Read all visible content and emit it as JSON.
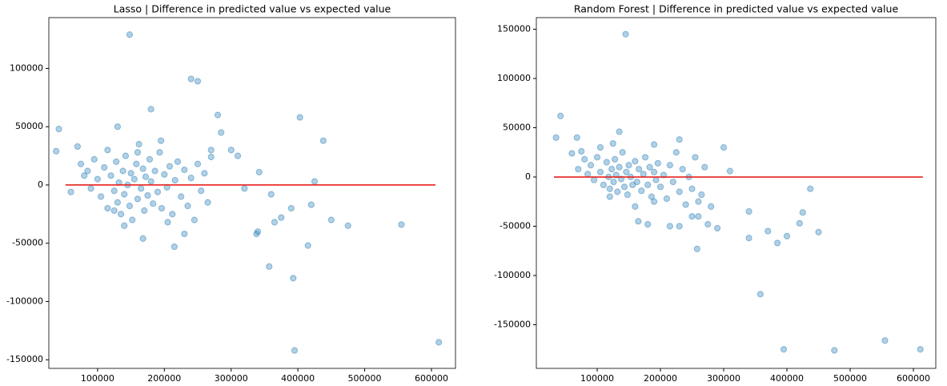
{
  "chart_data": [
    {
      "type": "scatter",
      "title": "Lasso | Difference in predicted value vs expected value",
      "xlim": [
        27000,
        636000
      ],
      "ylim": [
        -157400,
        143600
      ],
      "xticks": [
        100000,
        200000,
        300000,
        400000,
        500000,
        600000
      ],
      "yticks": [
        -150000,
        -100000,
        -50000,
        0,
        50000,
        100000
      ],
      "series": [
        {
          "color": "#1f77b4",
          "x": [
            148000,
            240000,
            250000,
            180000,
            280000,
            403000,
            438000,
            38000,
            42000,
            555000,
            611000,
            395000,
            393000,
            357000,
            415000,
            475000,
            450000,
            375000,
            365000,
            340000,
            338000,
            215000,
            168000,
            130000,
            285000,
            230000,
            425000,
            420000,
            390000,
            360000,
            342000,
            320000,
            300000,
            310000,
            270000,
            100000,
            105000,
            110000,
            115000,
            120000,
            125000,
            128000,
            130000,
            132000,
            135000,
            138000,
            140000,
            142000,
            145000,
            148000,
            150000,
            152000,
            155000,
            158000,
            160000,
            162000,
            165000,
            168000,
            170000,
            172000,
            175000,
            178000,
            180000,
            183000,
            186000,
            190000,
            193000,
            196000,
            200000,
            204000,
            208000,
            212000,
            216000,
            220000,
            225000,
            230000,
            235000,
            240000,
            245000,
            250000,
            255000,
            260000,
            265000,
            270000,
            85000,
            90000,
            95000,
            80000,
            75000,
            115000,
            125000,
            140000,
            160000,
            195000,
            205000,
            60000,
            70000
          ],
          "values": [
            129000,
            91000,
            89000,
            65000,
            60000,
            58000,
            38000,
            29000,
            48000,
            -34000,
            -135000,
            -142000,
            -80000,
            -70000,
            -52000,
            -35000,
            -30000,
            -28000,
            -32000,
            -40000,
            -42000,
            -53000,
            -46000,
            50000,
            45000,
            -42000,
            3000,
            -17000,
            -20000,
            -8000,
            11000,
            -3000,
            30000,
            25000,
            30000,
            5000,
            -10000,
            15000,
            -20000,
            8000,
            -5000,
            20000,
            -15000,
            2000,
            -25000,
            12000,
            -8000,
            25000,
            0,
            -18000,
            10000,
            -30000,
            5000,
            18000,
            -12000,
            35000,
            -3000,
            14000,
            -22000,
            7000,
            -9000,
            22000,
            3000,
            -16000,
            12000,
            -6000,
            28000,
            -20000,
            9000,
            -2000,
            16000,
            -25000,
            4000,
            20000,
            -10000,
            13000,
            -18000,
            6000,
            -30000,
            18000,
            -5000,
            10000,
            -15000,
            24000,
            12000,
            -3000,
            22000,
            8000,
            18000,
            30000,
            -22000,
            -35000,
            28000,
            38000,
            -32000,
            -6000,
            33000
          ]
        },
        {
          "type": "line",
          "color": "#e8221b",
          "x": [
            52000,
            606000
          ],
          "values": [
            0,
            0
          ]
        }
      ]
    },
    {
      "type": "scatter",
      "title": "Random Forest | Difference in predicted value vs expected value",
      "xlim": [
        3800,
        635400
      ],
      "ylim": [
        -194300,
        161800
      ],
      "xticks": [
        100000,
        200000,
        300000,
        400000,
        500000,
        600000
      ],
      "yticks": [
        -150000,
        -100000,
        -50000,
        0,
        50000,
        100000,
        150000
      ],
      "series": [
        {
          "color": "#1f77b4",
          "x": [
            145000,
            42000,
            35000,
            68000,
            135000,
            555000,
            611000,
            475000,
            395000,
            358000,
            258000,
            340000,
            385000,
            450000,
            400000,
            420000,
            425000,
            437000,
            370000,
            340000,
            300000,
            310000,
            290000,
            275000,
            250000,
            260000,
            230000,
            215000,
            180000,
            165000,
            90000,
            95000,
            100000,
            105000,
            110000,
            115000,
            118000,
            120000,
            123000,
            126000,
            128000,
            130000,
            132000,
            135000,
            138000,
            140000,
            143000,
            146000,
            148000,
            150000,
            153000,
            156000,
            160000,
            163000,
            166000,
            170000,
            173000,
            176000,
            180000,
            183000,
            186000,
            190000,
            193000,
            196000,
            200000,
            205000,
            210000,
            215000,
            220000,
            225000,
            230000,
            235000,
            240000,
            245000,
            250000,
            255000,
            260000,
            265000,
            270000,
            280000,
            75000,
            80000,
            60000,
            70000,
            85000,
            105000,
            125000,
            190000,
            230000,
            120000,
            160000,
            190000
          ],
          "values": [
            145000,
            62000,
            40000,
            40000,
            46000,
            -166000,
            -175000,
            -176000,
            -175000,
            -119000,
            -73000,
            -62000,
            -67000,
            -56000,
            -60000,
            -47000,
            -36000,
            -12000,
            -55000,
            -35000,
            30000,
            6000,
            -52000,
            -48000,
            -40000,
            -40000,
            -50000,
            -50000,
            -48000,
            -45000,
            12000,
            -3000,
            20000,
            5000,
            -8000,
            15000,
            0,
            -12000,
            8000,
            -5000,
            18000,
            2000,
            -15000,
            10000,
            -2000,
            25000,
            -10000,
            5000,
            -18000,
            12000,
            0,
            -8000,
            16000,
            -5000,
            8000,
            -14000,
            3000,
            20000,
            -8000,
            10000,
            -20000,
            5000,
            -3000,
            14000,
            -10000,
            2000,
            -22000,
            12000,
            -5000,
            25000,
            -15000,
            8000,
            -28000,
            0,
            -12000,
            20000,
            -25000,
            -18000,
            10000,
            -30000,
            26000,
            18000,
            24000,
            8000,
            3000,
            30000,
            34000,
            33000,
            38000,
            -20000,
            -30000,
            -25000
          ]
        },
        {
          "type": "line",
          "color": "#e8221b",
          "x": [
            31600,
            615000
          ],
          "values": [
            0,
            0
          ]
        }
      ]
    }
  ]
}
